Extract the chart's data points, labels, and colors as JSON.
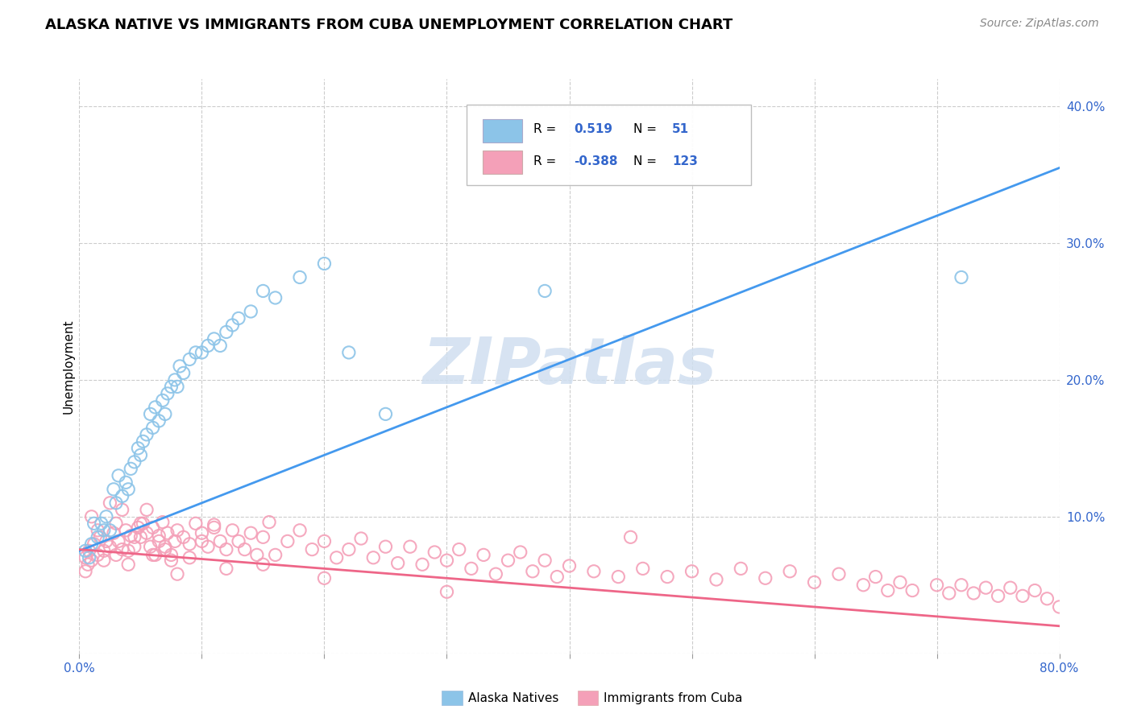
{
  "title": "ALASKA NATIVE VS IMMIGRANTS FROM CUBA UNEMPLOYMENT CORRELATION CHART",
  "source_text": "Source: ZipAtlas.com",
  "ylabel": "Unemployment",
  "xlim": [
    0.0,
    0.8
  ],
  "ylim": [
    0.0,
    0.42
  ],
  "x_ticks": [
    0.0,
    0.1,
    0.2,
    0.3,
    0.4,
    0.5,
    0.6,
    0.7,
    0.8
  ],
  "y_ticks_right": [
    0.0,
    0.1,
    0.2,
    0.3,
    0.4
  ],
  "blue_color": "#8cc4e8",
  "blue_line_color": "#4499ee",
  "pink_color": "#f4a0b8",
  "pink_line_color": "#ee6688",
  "watermark_text": "ZIPatlas",
  "blue_line_y_start": 0.075,
  "blue_line_y_end": 0.355,
  "pink_line_y_start": 0.076,
  "pink_line_y_end": 0.02,
  "background_color": "#ffffff",
  "grid_color": "#cccccc",
  "title_fontsize": 13,
  "label_fontsize": 11,
  "tick_fontsize": 11,
  "blue_scatter_x": [
    0.005,
    0.008,
    0.01,
    0.012,
    0.015,
    0.018,
    0.02,
    0.022,
    0.025,
    0.028,
    0.03,
    0.032,
    0.035,
    0.038,
    0.04,
    0.042,
    0.045,
    0.048,
    0.05,
    0.052,
    0.055,
    0.058,
    0.06,
    0.062,
    0.065,
    0.068,
    0.07,
    0.072,
    0.075,
    0.078,
    0.08,
    0.082,
    0.085,
    0.09,
    0.095,
    0.1,
    0.105,
    0.11,
    0.115,
    0.12,
    0.125,
    0.13,
    0.14,
    0.15,
    0.16,
    0.18,
    0.2,
    0.22,
    0.25,
    0.38,
    0.72
  ],
  "blue_scatter_y": [
    0.075,
    0.07,
    0.08,
    0.095,
    0.085,
    0.095,
    0.09,
    0.1,
    0.09,
    0.12,
    0.11,
    0.13,
    0.115,
    0.125,
    0.12,
    0.135,
    0.14,
    0.15,
    0.145,
    0.155,
    0.16,
    0.175,
    0.165,
    0.18,
    0.17,
    0.185,
    0.175,
    0.19,
    0.195,
    0.2,
    0.195,
    0.21,
    0.205,
    0.215,
    0.22,
    0.22,
    0.225,
    0.23,
    0.225,
    0.235,
    0.24,
    0.245,
    0.25,
    0.265,
    0.26,
    0.275,
    0.285,
    0.22,
    0.175,
    0.265,
    0.275
  ],
  "pink_scatter_x": [
    0.005,
    0.007,
    0.008,
    0.01,
    0.012,
    0.015,
    0.017,
    0.02,
    0.022,
    0.025,
    0.028,
    0.03,
    0.032,
    0.035,
    0.038,
    0.04,
    0.042,
    0.045,
    0.048,
    0.05,
    0.052,
    0.055,
    0.058,
    0.06,
    0.062,
    0.065,
    0.068,
    0.07,
    0.072,
    0.075,
    0.078,
    0.08,
    0.085,
    0.09,
    0.095,
    0.1,
    0.105,
    0.11,
    0.115,
    0.12,
    0.125,
    0.13,
    0.135,
    0.14,
    0.145,
    0.15,
    0.155,
    0.16,
    0.17,
    0.18,
    0.19,
    0.2,
    0.21,
    0.22,
    0.23,
    0.24,
    0.25,
    0.26,
    0.27,
    0.28,
    0.29,
    0.3,
    0.31,
    0.32,
    0.33,
    0.34,
    0.35,
    0.36,
    0.37,
    0.38,
    0.39,
    0.4,
    0.42,
    0.44,
    0.46,
    0.48,
    0.5,
    0.52,
    0.54,
    0.56,
    0.58,
    0.6,
    0.62,
    0.64,
    0.65,
    0.66,
    0.67,
    0.68,
    0.7,
    0.71,
    0.72,
    0.73,
    0.74,
    0.75,
    0.76,
    0.77,
    0.78,
    0.79,
    0.8,
    0.005,
    0.01,
    0.015,
    0.02,
    0.025,
    0.03,
    0.035,
    0.04,
    0.045,
    0.05,
    0.055,
    0.06,
    0.065,
    0.07,
    0.075,
    0.08,
    0.09,
    0.1,
    0.11,
    0.12,
    0.15,
    0.2,
    0.3,
    0.45
  ],
  "pink_scatter_y": [
    0.07,
    0.065,
    0.075,
    0.068,
    0.08,
    0.072,
    0.085,
    0.075,
    0.082,
    0.078,
    0.088,
    0.072,
    0.082,
    0.076,
    0.09,
    0.075,
    0.086,
    0.078,
    0.092,
    0.085,
    0.095,
    0.088,
    0.078,
    0.092,
    0.072,
    0.086,
    0.096,
    0.078,
    0.088,
    0.072,
    0.082,
    0.09,
    0.085,
    0.08,
    0.095,
    0.088,
    0.078,
    0.092,
    0.082,
    0.076,
    0.09,
    0.082,
    0.076,
    0.088,
    0.072,
    0.085,
    0.096,
    0.072,
    0.082,
    0.09,
    0.076,
    0.082,
    0.07,
    0.076,
    0.084,
    0.07,
    0.078,
    0.066,
    0.078,
    0.065,
    0.074,
    0.068,
    0.076,
    0.062,
    0.072,
    0.058,
    0.068,
    0.074,
    0.06,
    0.068,
    0.056,
    0.064,
    0.06,
    0.056,
    0.062,
    0.056,
    0.06,
    0.054,
    0.062,
    0.055,
    0.06,
    0.052,
    0.058,
    0.05,
    0.056,
    0.046,
    0.052,
    0.046,
    0.05,
    0.044,
    0.05,
    0.044,
    0.048,
    0.042,
    0.048,
    0.042,
    0.046,
    0.04,
    0.034,
    0.06,
    0.1,
    0.09,
    0.068,
    0.11,
    0.095,
    0.105,
    0.065,
    0.085,
    0.095,
    0.105,
    0.072,
    0.082,
    0.076,
    0.068,
    0.058,
    0.07,
    0.082,
    0.094,
    0.062,
    0.065,
    0.055,
    0.045,
    0.085
  ]
}
